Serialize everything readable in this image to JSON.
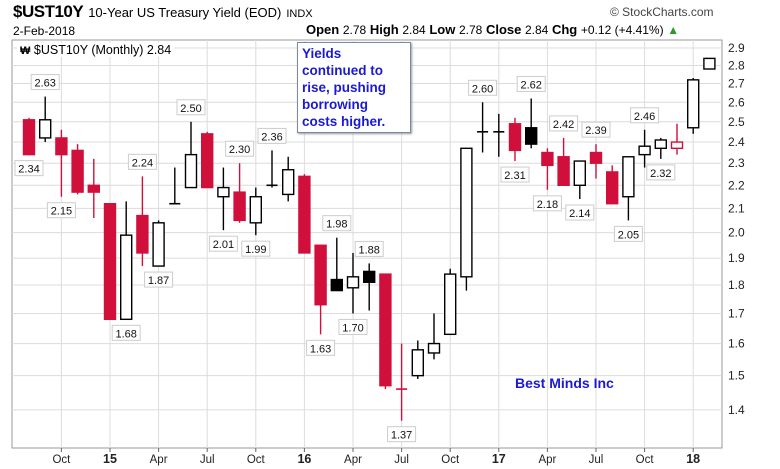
{
  "header": {
    "symbol": "$UST10Y",
    "description": "10-Year US Treasury Yield (EOD)",
    "exchange": "INDX",
    "copyright": "© StockCharts.com",
    "date": "2-Feb-2018",
    "open_label": "Open",
    "open": "2.78",
    "high_label": "High",
    "high": "2.84",
    "low_label": "Low",
    "low": "2.78",
    "close_label": "Close",
    "close": "2.84",
    "chg_label": "Chg",
    "chg": "+0.12 (+4.41%)",
    "chg_icon": "up-triangle-icon"
  },
  "legend": {
    "icon": "candlestick-icon",
    "text": "$UST10Y (Monthly) 2.84"
  },
  "callout": "Yields continued to rise, pushing borrowing costs higher.",
  "brand": "Best Minds Inc",
  "colors": {
    "down": "#d0103a",
    "up": "#000000",
    "grid": "#dcdcdc",
    "text_blue": "#1a1ad0"
  },
  "chart_data": {
    "type": "candlestick",
    "title": "$UST10Y (Monthly)",
    "y_scale": "log",
    "ylim": [
      1.33,
      2.95
    ],
    "yticks": [
      2.9,
      2.8,
      2.7,
      2.6,
      2.5,
      2.4,
      2.3,
      2.2,
      2.1,
      2.0,
      1.9,
      1.8,
      1.7,
      1.6,
      1.5,
      1.4
    ],
    "ytick_labels": [
      "2.9",
      "2.8",
      "2.7",
      "2.6",
      "2.5",
      "2.4",
      "2.3",
      "2.2",
      "2.1",
      "2.0",
      "1.9",
      "1.8",
      "1.7",
      "1.6",
      "1.5",
      "1.4"
    ],
    "grid": true,
    "xticks": [
      {
        "month": "2014-10",
        "label": "Oct",
        "year": false
      },
      {
        "month": "2015-01",
        "label": "15",
        "year": true
      },
      {
        "month": "2015-04",
        "label": "Apr",
        "year": false
      },
      {
        "month": "2015-07",
        "label": "Jul",
        "year": false
      },
      {
        "month": "2015-10",
        "label": "Oct",
        "year": false
      },
      {
        "month": "2016-01",
        "label": "16",
        "year": true
      },
      {
        "month": "2016-04",
        "label": "Apr",
        "year": false
      },
      {
        "month": "2016-07",
        "label": "Jul",
        "year": false
      },
      {
        "month": "2016-10",
        "label": "Oct",
        "year": false
      },
      {
        "month": "2017-01",
        "label": "17",
        "year": true
      },
      {
        "month": "2017-04",
        "label": "Apr",
        "year": false
      },
      {
        "month": "2017-07",
        "label": "Jul",
        "year": false
      },
      {
        "month": "2017-10",
        "label": "Oct",
        "year": false
      },
      {
        "month": "2018-01",
        "label": "18",
        "year": true
      }
    ],
    "candles": [
      {
        "month": "2014-08",
        "o": 2.51,
        "h": 2.52,
        "l": 2.34,
        "c": 2.34,
        "style": "red"
      },
      {
        "month": "2014-09",
        "o": 2.42,
        "h": 2.63,
        "l": 2.4,
        "c": 2.51,
        "style": "hollow"
      },
      {
        "month": "2014-10",
        "o": 2.42,
        "h": 2.46,
        "l": 2.15,
        "c": 2.34,
        "style": "red"
      },
      {
        "month": "2014-11",
        "o": 2.36,
        "h": 2.39,
        "l": 2.16,
        "c": 2.17,
        "style": "red"
      },
      {
        "month": "2014-12",
        "o": 2.2,
        "h": 2.32,
        "l": 2.06,
        "c": 2.17,
        "style": "red"
      },
      {
        "month": "2015-01",
        "o": 2.12,
        "h": 2.12,
        "l": 1.68,
        "c": 1.68,
        "style": "red"
      },
      {
        "month": "2015-02",
        "o": 1.68,
        "h": 2.13,
        "l": 1.68,
        "c": 1.99,
        "style": "hollow"
      },
      {
        "month": "2015-03",
        "o": 2.07,
        "h": 2.24,
        "l": 1.87,
        "c": 1.92,
        "style": "red"
      },
      {
        "month": "2015-04",
        "o": 1.87,
        "h": 2.05,
        "l": 1.87,
        "c": 2.04,
        "style": "hollow"
      },
      {
        "month": "2015-05",
        "o": 2.12,
        "h": 2.28,
        "l": 2.12,
        "c": 2.12,
        "style": "hollow"
      },
      {
        "month": "2015-06",
        "o": 2.19,
        "h": 2.5,
        "l": 2.19,
        "c": 2.34,
        "style": "hollow"
      },
      {
        "month": "2015-07",
        "o": 2.44,
        "h": 2.45,
        "l": 2.19,
        "c": 2.19,
        "style": "red"
      },
      {
        "month": "2015-08",
        "o": 2.15,
        "h": 2.28,
        "l": 2.01,
        "c": 2.19,
        "style": "hollow"
      },
      {
        "month": "2015-09",
        "o": 2.17,
        "h": 2.3,
        "l": 2.04,
        "c": 2.05,
        "style": "red"
      },
      {
        "month": "2015-10",
        "o": 2.04,
        "h": 2.19,
        "l": 1.99,
        "c": 2.15,
        "style": "hollow"
      },
      {
        "month": "2015-11",
        "o": 2.2,
        "h": 2.36,
        "l": 2.19,
        "c": 2.2,
        "style": "hollow"
      },
      {
        "month": "2015-12",
        "o": 2.16,
        "h": 2.33,
        "l": 2.13,
        "c": 2.27,
        "style": "hollow"
      },
      {
        "month": "2016-01",
        "o": 2.24,
        "h": 2.25,
        "l": 1.92,
        "c": 1.92,
        "style": "red"
      },
      {
        "month": "2016-02",
        "o": 1.95,
        "h": 1.95,
        "l": 1.63,
        "c": 1.73,
        "style": "red"
      },
      {
        "month": "2016-03",
        "o": 1.82,
        "h": 1.98,
        "l": 1.78,
        "c": 1.78,
        "style": "black"
      },
      {
        "month": "2016-04",
        "o": 1.79,
        "h": 1.92,
        "l": 1.7,
        "c": 1.83,
        "style": "hollow"
      },
      {
        "month": "2016-05",
        "o": 1.85,
        "h": 1.88,
        "l": 1.71,
        "c": 1.81,
        "style": "black"
      },
      {
        "month": "2016-06",
        "o": 1.84,
        "h": 1.84,
        "l": 1.46,
        "c": 1.47,
        "style": "red"
      },
      {
        "month": "2016-07",
        "o": 1.46,
        "h": 1.6,
        "l": 1.37,
        "c": 1.46,
        "style": "red"
      },
      {
        "month": "2016-08",
        "o": 1.5,
        "h": 1.61,
        "l": 1.49,
        "c": 1.58,
        "style": "hollow"
      },
      {
        "month": "2016-09",
        "o": 1.57,
        "h": 1.7,
        "l": 1.55,
        "c": 1.6,
        "style": "hollow"
      },
      {
        "month": "2016-10",
        "o": 1.63,
        "h": 1.86,
        "l": 1.63,
        "c": 1.84,
        "style": "hollow"
      },
      {
        "month": "2016-11",
        "o": 1.83,
        "h": 2.37,
        "l": 1.78,
        "c": 2.37,
        "style": "hollow"
      },
      {
        "month": "2016-12",
        "o": 2.45,
        "h": 2.6,
        "l": 2.35,
        "c": 2.45,
        "style": "hollow"
      },
      {
        "month": "2017-01",
        "o": 2.45,
        "h": 2.54,
        "l": 2.33,
        "c": 2.45,
        "style": "hollow"
      },
      {
        "month": "2017-02",
        "o": 2.49,
        "h": 2.52,
        "l": 2.31,
        "c": 2.36,
        "style": "red"
      },
      {
        "month": "2017-03",
        "o": 2.47,
        "h": 2.62,
        "l": 2.37,
        "c": 2.39,
        "style": "black"
      },
      {
        "month": "2017-04",
        "o": 2.35,
        "h": 2.37,
        "l": 2.18,
        "c": 2.29,
        "style": "red"
      },
      {
        "month": "2017-05",
        "o": 2.33,
        "h": 2.42,
        "l": 2.2,
        "c": 2.2,
        "style": "red"
      },
      {
        "month": "2017-06",
        "o": 2.2,
        "h": 2.31,
        "l": 2.14,
        "c": 2.31,
        "style": "hollow"
      },
      {
        "month": "2017-07",
        "o": 2.35,
        "h": 2.39,
        "l": 2.23,
        "c": 2.3,
        "style": "red"
      },
      {
        "month": "2017-08",
        "o": 2.26,
        "h": 2.29,
        "l": 2.12,
        "c": 2.12,
        "style": "red"
      },
      {
        "month": "2017-09",
        "o": 2.15,
        "h": 2.33,
        "l": 2.05,
        "c": 2.33,
        "style": "hollow"
      },
      {
        "month": "2017-10",
        "o": 2.34,
        "h": 2.46,
        "l": 2.28,
        "c": 2.38,
        "style": "hollow"
      },
      {
        "month": "2017-11",
        "o": 2.37,
        "h": 2.42,
        "l": 2.32,
        "c": 2.41,
        "style": "hollow"
      },
      {
        "month": "2017-12",
        "o": 2.37,
        "h": 2.49,
        "l": 2.34,
        "c": 2.4,
        "style": "hollow-red"
      },
      {
        "month": "2018-01",
        "o": 2.47,
        "h": 2.73,
        "l": 2.44,
        "c": 2.72,
        "style": "hollow"
      },
      {
        "month": "2018-02",
        "o": 2.78,
        "h": 2.84,
        "l": 2.78,
        "c": 2.84,
        "style": "hollow"
      }
    ],
    "annotations": [
      {
        "month": "2014-08",
        "text": "2.34",
        "at": "low"
      },
      {
        "month": "2014-09",
        "text": "2.63",
        "at": "high"
      },
      {
        "month": "2014-10",
        "text": "2.15",
        "at": "low"
      },
      {
        "month": "2015-02",
        "text": "1.68",
        "at": "low"
      },
      {
        "month": "2015-03",
        "text": "2.24",
        "at": "high"
      },
      {
        "month": "2015-04",
        "text": "1.87",
        "at": "low"
      },
      {
        "month": "2015-06",
        "text": "2.50",
        "at": "high"
      },
      {
        "month": "2015-08",
        "text": "2.01",
        "at": "low"
      },
      {
        "month": "2015-09",
        "text": "2.30",
        "at": "high"
      },
      {
        "month": "2015-10",
        "text": "1.99",
        "at": "low"
      },
      {
        "month": "2015-11",
        "text": "2.36",
        "at": "high"
      },
      {
        "month": "2016-02",
        "text": "1.63",
        "at": "low"
      },
      {
        "month": "2016-03",
        "text": "1.98",
        "at": "high"
      },
      {
        "month": "2016-04",
        "text": "1.70",
        "at": "low"
      },
      {
        "month": "2016-05",
        "text": "1.88",
        "at": "high"
      },
      {
        "month": "2016-07",
        "text": "1.37",
        "at": "low"
      },
      {
        "month": "2016-12",
        "text": "2.60",
        "at": "high"
      },
      {
        "month": "2017-02",
        "text": "2.31",
        "at": "low"
      },
      {
        "month": "2017-03",
        "text": "2.62",
        "at": "high"
      },
      {
        "month": "2017-04",
        "text": "2.18",
        "at": "low"
      },
      {
        "month": "2017-05",
        "text": "2.42",
        "at": "high"
      },
      {
        "month": "2017-06",
        "text": "2.14",
        "at": "low"
      },
      {
        "month": "2017-07",
        "text": "2.39",
        "at": "high"
      },
      {
        "month": "2017-09",
        "text": "2.05",
        "at": "low"
      },
      {
        "month": "2017-10",
        "text": "2.46",
        "at": "high"
      },
      {
        "month": "2017-11",
        "text": "2.32",
        "at": "low"
      }
    ]
  }
}
